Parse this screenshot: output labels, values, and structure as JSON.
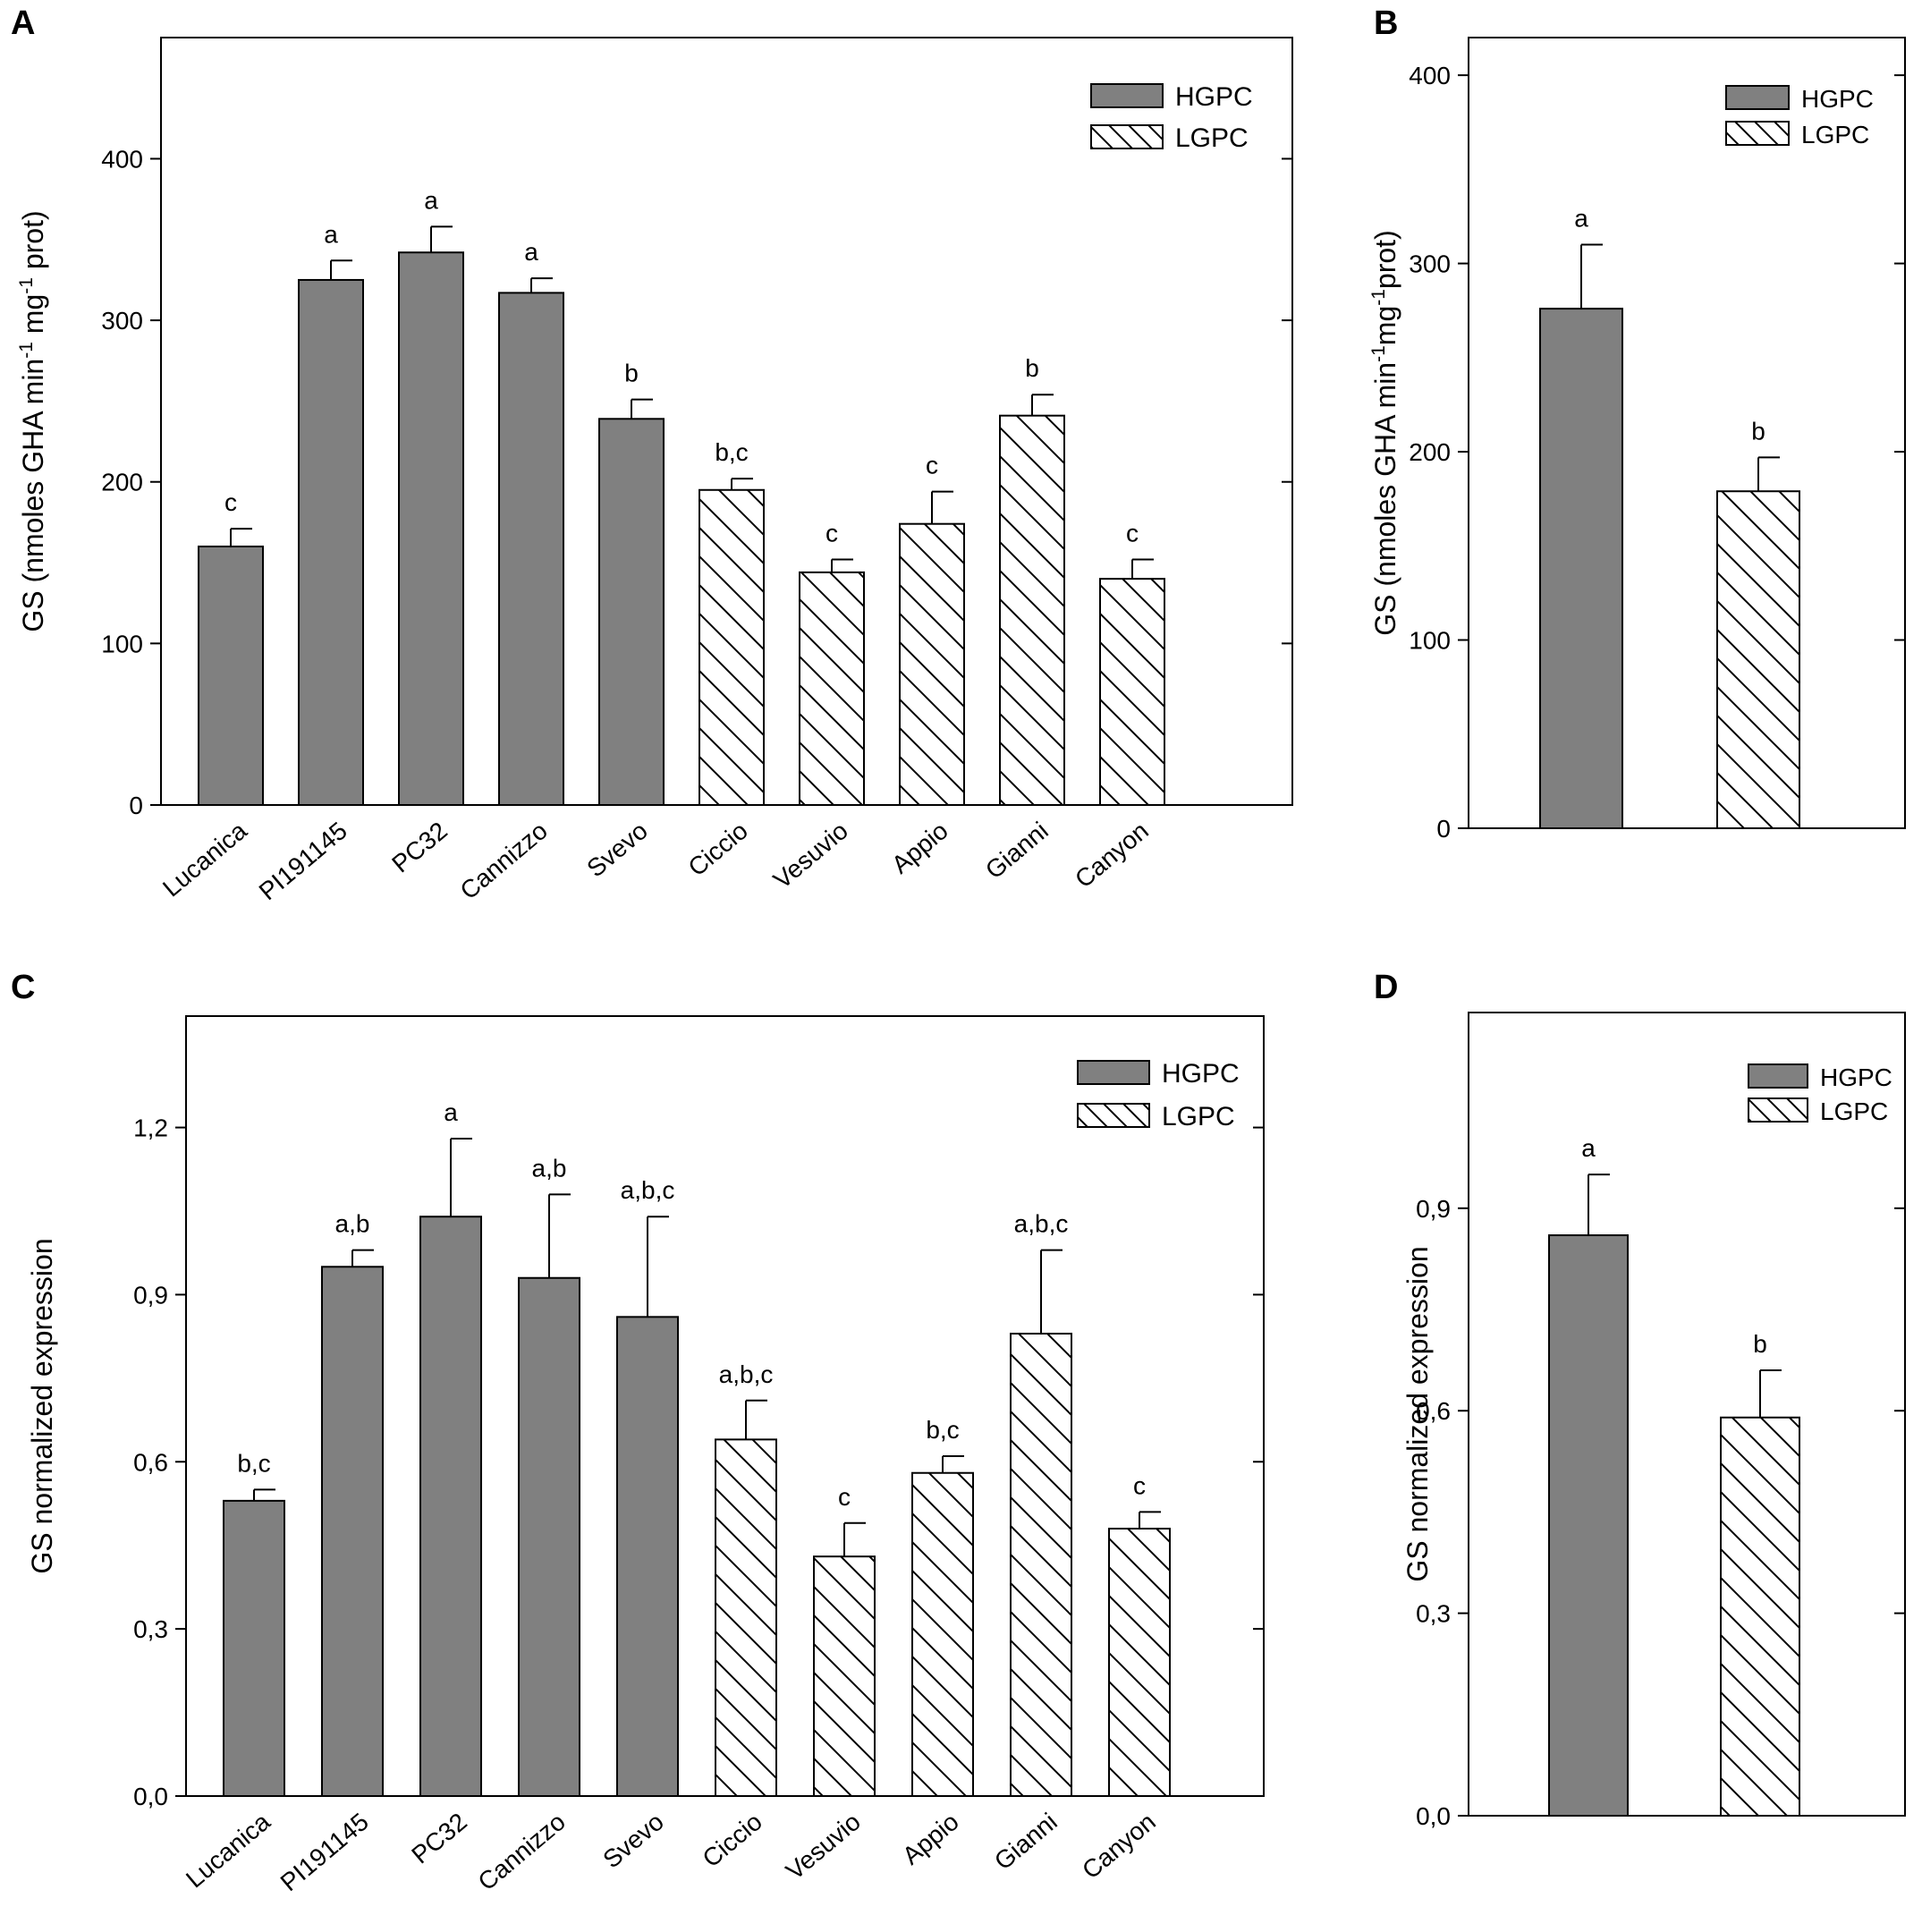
{
  "colors": {
    "hgpc_fill": "#808080",
    "lgpc_fill": "#ffffff",
    "stroke": "#000000"
  },
  "chart_data": [
    {
      "panel": "A",
      "type": "bar",
      "title": "",
      "xlabel": "",
      "ylabel_main": "GS (nmoles GHA min",
      "ylabel_sup1": "-1",
      "ylabel_mid": " mg",
      "ylabel_sup2": "-1",
      "ylabel_end": " prot)",
      "ylim": [
        0,
        475
      ],
      "yticks": [
        0,
        100,
        200,
        300,
        400
      ],
      "ytick_labels": [
        "0",
        "100",
        "200",
        "300",
        "400"
      ],
      "categories": [
        "Lucanica",
        "PI191145",
        "PC32",
        "Cannizzo",
        "Svevo",
        "Ciccio",
        "Vesuvio",
        "Appio",
        "Gianni",
        "Canyon"
      ],
      "groups": [
        "HGPC",
        "HGPC",
        "HGPC",
        "HGPC",
        "HGPC",
        "LGPC",
        "LGPC",
        "LGPC",
        "LGPC",
        "LGPC"
      ],
      "values": [
        160,
        325,
        342,
        317,
        239,
        195,
        144,
        174,
        241,
        140
      ],
      "errors": [
        11,
        12,
        16,
        9,
        12,
        7,
        8,
        20,
        13,
        12
      ],
      "letters": [
        "c",
        "a",
        "a",
        "a",
        "b",
        "b,c",
        "c",
        "c",
        "b",
        "c"
      ],
      "legend": [
        "HGPC",
        "LGPC"
      ],
      "legend_position": "top-right"
    },
    {
      "panel": "B",
      "type": "bar",
      "title": "",
      "xlabel": "",
      "ylabel_main": "GS (nmoles GHA min",
      "ylabel_sup1": "-1",
      "ylabel_mid": "mg",
      "ylabel_sup2": "-1",
      "ylabel_end": "prot)",
      "ylim": [
        0,
        420
      ],
      "yticks": [
        0,
        100,
        200,
        300,
        400
      ],
      "ytick_labels": [
        "0",
        "100",
        "200",
        "300",
        "400"
      ],
      "categories": [
        "HGPC",
        "LGPC"
      ],
      "groups": [
        "HGPC",
        "LGPC"
      ],
      "values": [
        276,
        179
      ],
      "errors": [
        34,
        18
      ],
      "letters": [
        "a",
        "b"
      ],
      "legend": [
        "HGPC",
        "LGPC"
      ],
      "legend_position": "top-right"
    },
    {
      "panel": "C",
      "type": "bar",
      "title": "",
      "xlabel": "",
      "ylabel_main": "GS normalized expression",
      "ylim": [
        0,
        1.4
      ],
      "yticks": [
        0,
        0.3,
        0.6,
        0.9,
        1.2
      ],
      "ytick_labels": [
        "0,0",
        "0,3",
        "0,6",
        "0,9",
        "1,2"
      ],
      "categories": [
        "Lucanica",
        "PI191145",
        "PC32",
        "Cannizzo",
        "Svevo",
        "Ciccio",
        "Vesuvio",
        "Appio",
        "Gianni",
        "Canyon"
      ],
      "groups": [
        "HGPC",
        "HGPC",
        "HGPC",
        "HGPC",
        "HGPC",
        "LGPC",
        "LGPC",
        "LGPC",
        "LGPC",
        "LGPC"
      ],
      "values": [
        0.53,
        0.95,
        1.04,
        0.93,
        0.86,
        0.64,
        0.43,
        0.58,
        0.83,
        0.48
      ],
      "errors": [
        0.02,
        0.03,
        0.14,
        0.15,
        0.18,
        0.07,
        0.06,
        0.03,
        0.15,
        0.03
      ],
      "letters": [
        "b,c",
        "a,b",
        "a",
        "a,b",
        "a,b,c",
        "a,b,c",
        "c",
        "b,c",
        "a,b,c",
        "c"
      ],
      "legend": [
        "HGPC",
        "LGPC"
      ],
      "legend_position": "top-right"
    },
    {
      "panel": "D",
      "type": "bar",
      "title": "",
      "xlabel": "",
      "ylabel_main": "GS normalized expression",
      "ylim": [
        0,
        1.19
      ],
      "yticks": [
        0,
        0.3,
        0.6,
        0.9
      ],
      "ytick_labels": [
        "0,0",
        "0,3",
        "0,6",
        "0,9"
      ],
      "categories": [
        "HGPC",
        "LGPC"
      ],
      "groups": [
        "HGPC",
        "LGPC"
      ],
      "values": [
        0.86,
        0.59
      ],
      "errors": [
        0.09,
        0.07
      ],
      "letters": [
        "a",
        "b"
      ],
      "legend": [
        "HGPC",
        "LGPC"
      ],
      "legend_position": "top-right"
    }
  ]
}
